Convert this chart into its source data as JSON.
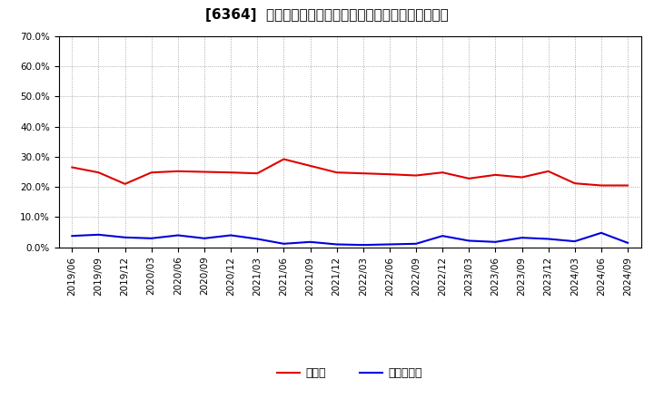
{
  "title": "[6364]  現頑金、有利子負債の総資産に対する比率の推移",
  "x_labels": [
    "2019/06",
    "2019/09",
    "2019/12",
    "2020/03",
    "2020/06",
    "2020/09",
    "2020/12",
    "2021/03",
    "2021/06",
    "2021/09",
    "2021/12",
    "2022/03",
    "2022/06",
    "2022/09",
    "2022/12",
    "2023/03",
    "2023/06",
    "2023/09",
    "2023/12",
    "2024/03",
    "2024/06",
    "2024/09"
  ],
  "cash_values": [
    0.265,
    0.248,
    0.21,
    0.248,
    0.252,
    0.25,
    0.248,
    0.245,
    0.292,
    0.27,
    0.248,
    0.245,
    0.242,
    0.238,
    0.248,
    0.228,
    0.24,
    0.232,
    0.252,
    0.212,
    0.205,
    0.205
  ],
  "debt_values": [
    0.038,
    0.042,
    0.033,
    0.03,
    0.04,
    0.03,
    0.04,
    0.028,
    0.012,
    0.018,
    0.01,
    0.008,
    0.01,
    0.012,
    0.038,
    0.022,
    0.018,
    0.032,
    0.028,
    0.02,
    0.048,
    0.015
  ],
  "cash_color": "#e00000",
  "debt_color": "#0000dd",
  "background_color": "#ffffff",
  "plot_bg_color": "#ffffff",
  "grid_color": "#999999",
  "ylim": [
    0.0,
    0.7
  ],
  "yticks": [
    0.0,
    0.1,
    0.2,
    0.3,
    0.4,
    0.5,
    0.6,
    0.7
  ],
  "legend_cash": "現頑金",
  "legend_debt": "有利子負債",
  "title_fontsize": 11,
  "axis_fontsize": 7.5,
  "legend_fontsize": 9
}
